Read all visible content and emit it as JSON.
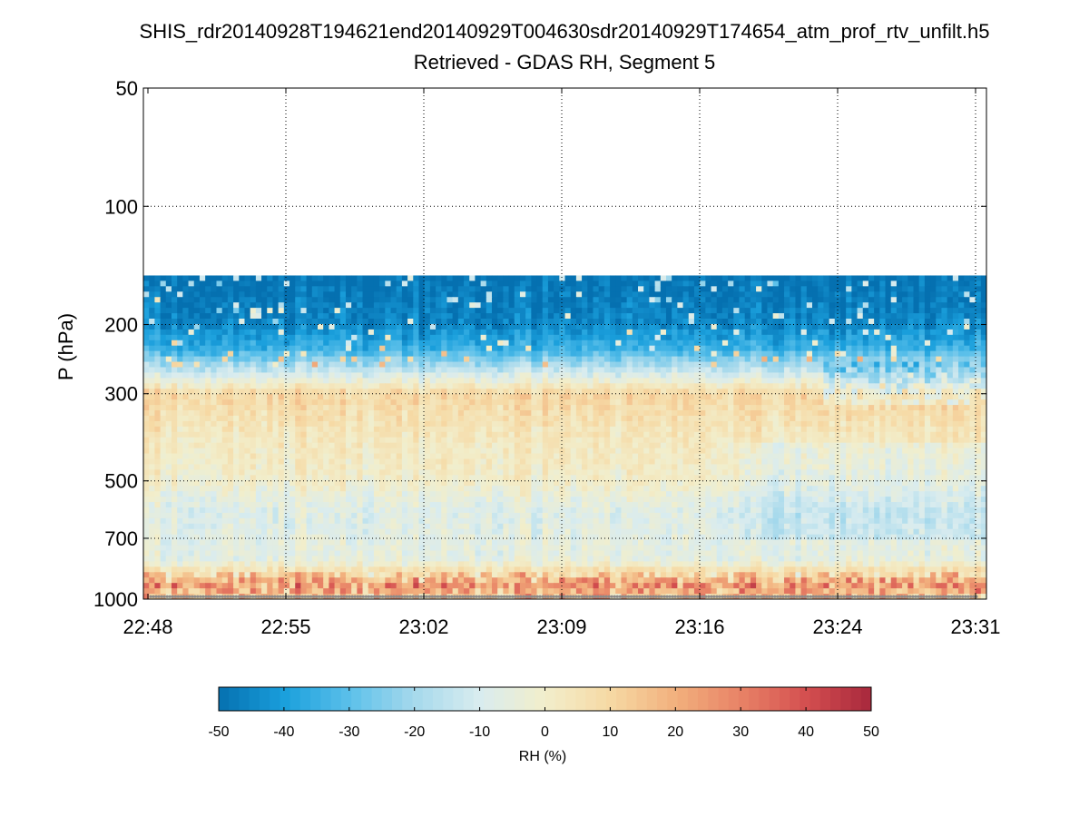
{
  "chart_data": {
    "type": "heatmap",
    "title": "SHIS_rdr20140928T194621end20140929T004630sdr20140929T174654_atm_prof_rtv_unfilt.h5",
    "subtitle": "Retrieved - GDAS RH, Segment 5",
    "ylabel": "P (hPa)",
    "xlabel": "",
    "y_scale": "log",
    "y_reversed": true,
    "ylim": [
      1000,
      50
    ],
    "y_ticks": [
      50,
      100,
      200,
      300,
      500,
      700,
      1000
    ],
    "y_tick_labels": [
      "50",
      "100",
      "200",
      "300",
      "500",
      "700",
      "1000"
    ],
    "x_tick_labels": [
      "22:48",
      "22:55",
      "23:02",
      "23:09",
      "23:16",
      "23:24",
      "23:31"
    ],
    "grid": true,
    "grid_style": "dotted",
    "data_range_pressure_hPa": [
      150,
      1000
    ],
    "approx_profile": [
      {
        "pressure_hPa": 150,
        "rh_diff_pct": -50
      },
      {
        "pressure_hPa": 200,
        "rh_diff_pct": -45
      },
      {
        "pressure_hPa": 230,
        "rh_diff_pct": -35
      },
      {
        "pressure_hPa": 260,
        "rh_diff_pct": -15
      },
      {
        "pressure_hPa": 300,
        "rh_diff_pct": 10
      },
      {
        "pressure_hPa": 400,
        "rh_diff_pct": 3
      },
      {
        "pressure_hPa": 500,
        "rh_diff_pct": 0
      },
      {
        "pressure_hPa": 600,
        "rh_diff_pct": -8
      },
      {
        "pressure_hPa": 800,
        "rh_diff_pct": -5
      },
      {
        "pressure_hPa": 920,
        "rh_diff_pct": 25
      },
      {
        "pressure_hPa": 1000,
        "rh_diff_pct": 15
      }
    ],
    "colorbar": {
      "label": "RH (%)",
      "range": [
        -50,
        50
      ],
      "ticks": [
        -50,
        -40,
        -30,
        -20,
        -10,
        0,
        10,
        20,
        30,
        40,
        50
      ],
      "tick_labels": [
        "-50",
        "-40",
        "-30",
        "-20",
        "-10",
        "0",
        "10",
        "20",
        "30",
        "40",
        "50"
      ],
      "colormap": [
        "#0570b0",
        "#1a9fdc",
        "#5bc0ea",
        "#a6d9ec",
        "#d9ecef",
        "#f2eecb",
        "#f6d9a4",
        "#f2b07d",
        "#e88266",
        "#d44f50",
        "#a7283c"
      ]
    }
  }
}
